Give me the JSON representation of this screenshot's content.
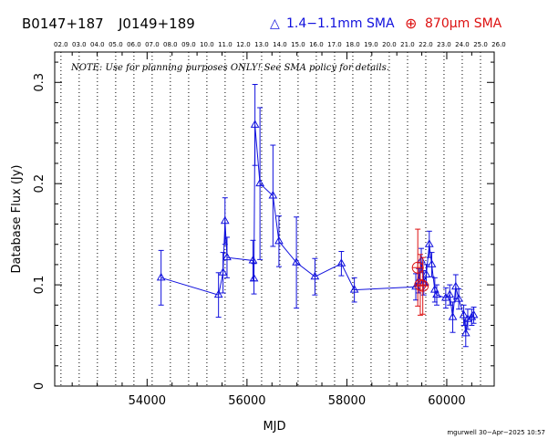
{
  "header": {
    "source_name": "B0147+187",
    "alt_name": "J0149+189",
    "legend_blue_symbol": "△",
    "legend_blue_label": "1.4−1.1mm SMA",
    "legend_red_symbol": "⊕",
    "legend_red_label": "870µm SMA"
  },
  "note": "NOTE: Use for planning purposes ONLY!  See SMA policy for details.",
  "footer": "mgurwell 30−Apr−2025 10:57",
  "colors": {
    "blue": "#1010dd",
    "red": "#dd1111",
    "axis": "#000000"
  },
  "chart_data": {
    "type": "scatter",
    "title": "",
    "xlabel": "MJD",
    "ylabel": "Database Flux (Jy)",
    "xlim": [
      52150,
      60950
    ],
    "ylim": [
      0,
      0.33
    ],
    "x_ticks": [
      54000,
      56000,
      58000,
      60000
    ],
    "y_ticks": [
      0,
      0.1,
      0.2,
      0.3
    ],
    "year_ticks": [
      {
        "label": "02.0",
        "mjd": 52275
      },
      {
        "label": "03.0",
        "mjd": 52640
      },
      {
        "label": "04.0",
        "mjd": 53005
      },
      {
        "label": "05.0",
        "mjd": 53371
      },
      {
        "label": "06.0",
        "mjd": 53736
      },
      {
        "label": "07.0",
        "mjd": 54101
      },
      {
        "label": "08.0",
        "mjd": 54466
      },
      {
        "label": "09.0",
        "mjd": 54832
      },
      {
        "label": "10.0",
        "mjd": 55197
      },
      {
        "label": "11.0",
        "mjd": 55562
      },
      {
        "label": "12.0",
        "mjd": 55927
      },
      {
        "label": "13.0",
        "mjd": 56293
      },
      {
        "label": "14.0",
        "mjd": 56658
      },
      {
        "label": "15.0",
        "mjd": 57023
      },
      {
        "label": "16.0",
        "mjd": 57388
      },
      {
        "label": "17.0",
        "mjd": 57754
      },
      {
        "label": "18.0",
        "mjd": 58119
      },
      {
        "label": "19.0",
        "mjd": 58484
      },
      {
        "label": "20.0",
        "mjd": 58849
      },
      {
        "label": "21.0",
        "mjd": 59215
      },
      {
        "label": "22.0",
        "mjd": 59580
      },
      {
        "label": "23.0",
        "mjd": 59945
      },
      {
        "label": "24.0",
        "mjd": 60310
      },
      {
        "label": "25.0",
        "mjd": 60676
      },
      {
        "label": "26.0",
        "mjd": 61041
      }
    ],
    "series": [
      {
        "name": "1.4−1.1mm SMA",
        "color": "#1010dd",
        "connected": true,
        "points": [
          {
            "x": 54280,
            "y": 0.107,
            "err": 0.027
          },
          {
            "x": 55430,
            "y": 0.09,
            "err": 0.022
          },
          {
            "x": 55520,
            "y": 0.112,
            "err": 0.02
          },
          {
            "x": 55560,
            "y": 0.163,
            "err": 0.023
          },
          {
            "x": 55600,
            "y": 0.127,
            "err": 0.02
          },
          {
            "x": 56120,
            "y": 0.124,
            "err": 0.02
          },
          {
            "x": 56140,
            "y": 0.106,
            "err": 0.015
          },
          {
            "x": 56160,
            "y": 0.258,
            "err": 0.04
          },
          {
            "x": 56260,
            "y": 0.2,
            "err": 0.075
          },
          {
            "x": 56520,
            "y": 0.188,
            "err": 0.05
          },
          {
            "x": 56640,
            "y": 0.143,
            "err": 0.025
          },
          {
            "x": 56990,
            "y": 0.122,
            "err": 0.045
          },
          {
            "x": 57360,
            "y": 0.108,
            "err": 0.018
          },
          {
            "x": 57890,
            "y": 0.121,
            "err": 0.012
          },
          {
            "x": 58150,
            "y": 0.095,
            "err": 0.012
          },
          {
            "x": 59380,
            "y": 0.098,
            "err": 0.013
          },
          {
            "x": 59440,
            "y": 0.104,
            "err": 0.012
          },
          {
            "x": 59490,
            "y": 0.124,
            "err": 0.012
          },
          {
            "x": 59540,
            "y": 0.102,
            "err": 0.012
          },
          {
            "x": 59590,
            "y": 0.11,
            "err": 0.01
          },
          {
            "x": 59650,
            "y": 0.14,
            "err": 0.013
          },
          {
            "x": 59700,
            "y": 0.12,
            "err": 0.012
          },
          {
            "x": 59760,
            "y": 0.095,
            "err": 0.012
          },
          {
            "x": 59800,
            "y": 0.09,
            "err": 0.01
          },
          {
            "x": 59980,
            "y": 0.087,
            "err": 0.01
          },
          {
            "x": 60060,
            "y": 0.09,
            "err": 0.01
          },
          {
            "x": 60120,
            "y": 0.068,
            "err": 0.015
          },
          {
            "x": 60180,
            "y": 0.098,
            "err": 0.012
          },
          {
            "x": 60240,
            "y": 0.086,
            "err": 0.01
          },
          {
            "x": 60340,
            "y": 0.07,
            "err": 0.01
          },
          {
            "x": 60380,
            "y": 0.052,
            "err": 0.013
          },
          {
            "x": 60420,
            "y": 0.066,
            "err": 0.01
          },
          {
            "x": 60500,
            "y": 0.068,
            "err": 0.008
          },
          {
            "x": 60540,
            "y": 0.07,
            "err": 0.008
          }
        ]
      },
      {
        "name": "870µm SMA",
        "color": "#dd1111",
        "connected": false,
        "points": [
          {
            "x": 59420,
            "y": 0.117,
            "err": 0.038
          },
          {
            "x": 59470,
            "y": 0.1,
            "err": 0.03
          },
          {
            "x": 59520,
            "y": 0.099,
            "err": 0.028
          }
        ]
      }
    ]
  }
}
